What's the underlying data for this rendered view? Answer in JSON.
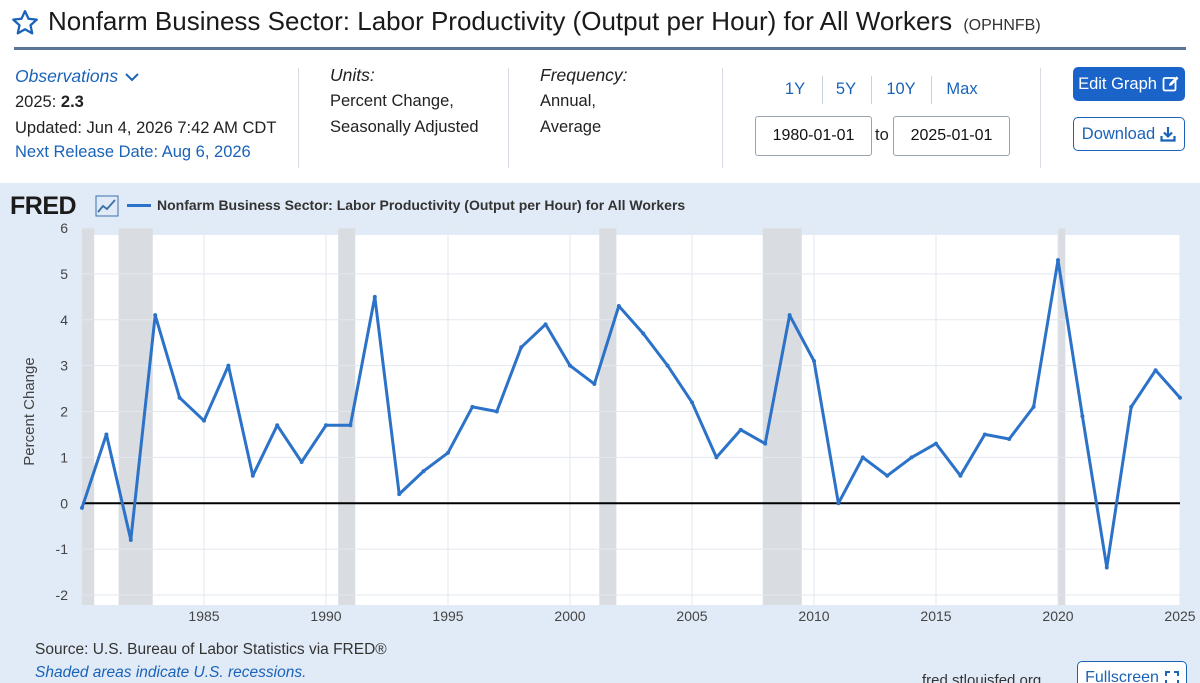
{
  "header": {
    "title": "Nonfarm Business Sector: Labor Productivity (Output per Hour) for All Workers",
    "series_id": "(OPHNFB)"
  },
  "observations": {
    "label": "Observations",
    "latest_year": "2025:",
    "latest_value": "2.3",
    "updated": "Updated: Jun 4, 2026 7:42 AM CDT",
    "next_release": "Next Release Date: Aug 6, 2026"
  },
  "units": {
    "label": "Units:",
    "line1": "Percent Change,",
    "line2": "Seasonally Adjusted"
  },
  "frequency": {
    "label": "Frequency:",
    "line1": "Annual,",
    "line2": "Average"
  },
  "range": {
    "buttons": [
      "1Y",
      "5Y",
      "10Y",
      "Max"
    ],
    "start": "1980-01-01",
    "to_label": "to",
    "end": "2025-01-01"
  },
  "actions": {
    "edit_label": "Edit Graph",
    "download_label": "Download",
    "fullscreen_label": "Fullscreen"
  },
  "chart_panel": {
    "logo": "FRED",
    "source": "Source: U.S. Bureau of Labor Statistics via FRED®",
    "shaded_note": "Shaded areas indicate U.S. recessions.",
    "site": "fred.stlouisfed.org"
  },
  "colors": {
    "series": "#2b72c8",
    "recession": "#d9dde2",
    "panel": "#e1ebf7",
    "accent": "#1a63c9"
  },
  "chart_data": {
    "type": "line",
    "title": "",
    "ylabel": "Percent Change",
    "xlabel": "",
    "legend": "top-left",
    "grid": true,
    "xlim": [
      1980,
      2025
    ],
    "ylim": [
      -2,
      6
    ],
    "yticks": [
      -2,
      -1,
      0,
      1,
      2,
      3,
      4,
      5,
      6
    ],
    "xticks": [
      1985,
      1990,
      1995,
      2000,
      2005,
      2010,
      2015,
      2020,
      2025
    ],
    "series": [
      {
        "name": "Nonfarm Business Sector: Labor Productivity (Output per Hour) for All Workers",
        "x": [
          1980,
          1981,
          1982,
          1983,
          1984,
          1985,
          1986,
          1987,
          1988,
          1989,
          1990,
          1991,
          1992,
          1993,
          1994,
          1995,
          1996,
          1997,
          1998,
          1999,
          2000,
          2001,
          2002,
          2003,
          2004,
          2005,
          2006,
          2007,
          2008,
          2009,
          2010,
          2011,
          2012,
          2013,
          2014,
          2015,
          2016,
          2017,
          2018,
          2019,
          2020,
          2021,
          2022,
          2023,
          2024,
          2025
        ],
        "values": [
          -0.1,
          1.5,
          -0.8,
          4.1,
          2.3,
          1.8,
          3.0,
          0.6,
          1.7,
          0.9,
          1.7,
          1.7,
          4.5,
          0.2,
          0.7,
          1.1,
          2.1,
          2.0,
          3.4,
          3.9,
          3.0,
          2.6,
          4.3,
          3.7,
          3.0,
          2.2,
          1.0,
          1.6,
          1.3,
          4.1,
          3.1,
          0.0,
          1.0,
          0.6,
          1.0,
          1.3,
          0.6,
          1.5,
          1.4,
          2.1,
          5.3,
          1.9,
          -1.4,
          2.1,
          2.9,
          2.3
        ]
      }
    ],
    "recessions": [
      [
        1980.0,
        1980.5
      ],
      [
        1981.5,
        1982.9
      ],
      [
        1990.5,
        1991.2
      ],
      [
        2001.2,
        2001.9
      ],
      [
        2007.9,
        2009.5
      ],
      [
        2020.0,
        2020.3
      ]
    ]
  }
}
